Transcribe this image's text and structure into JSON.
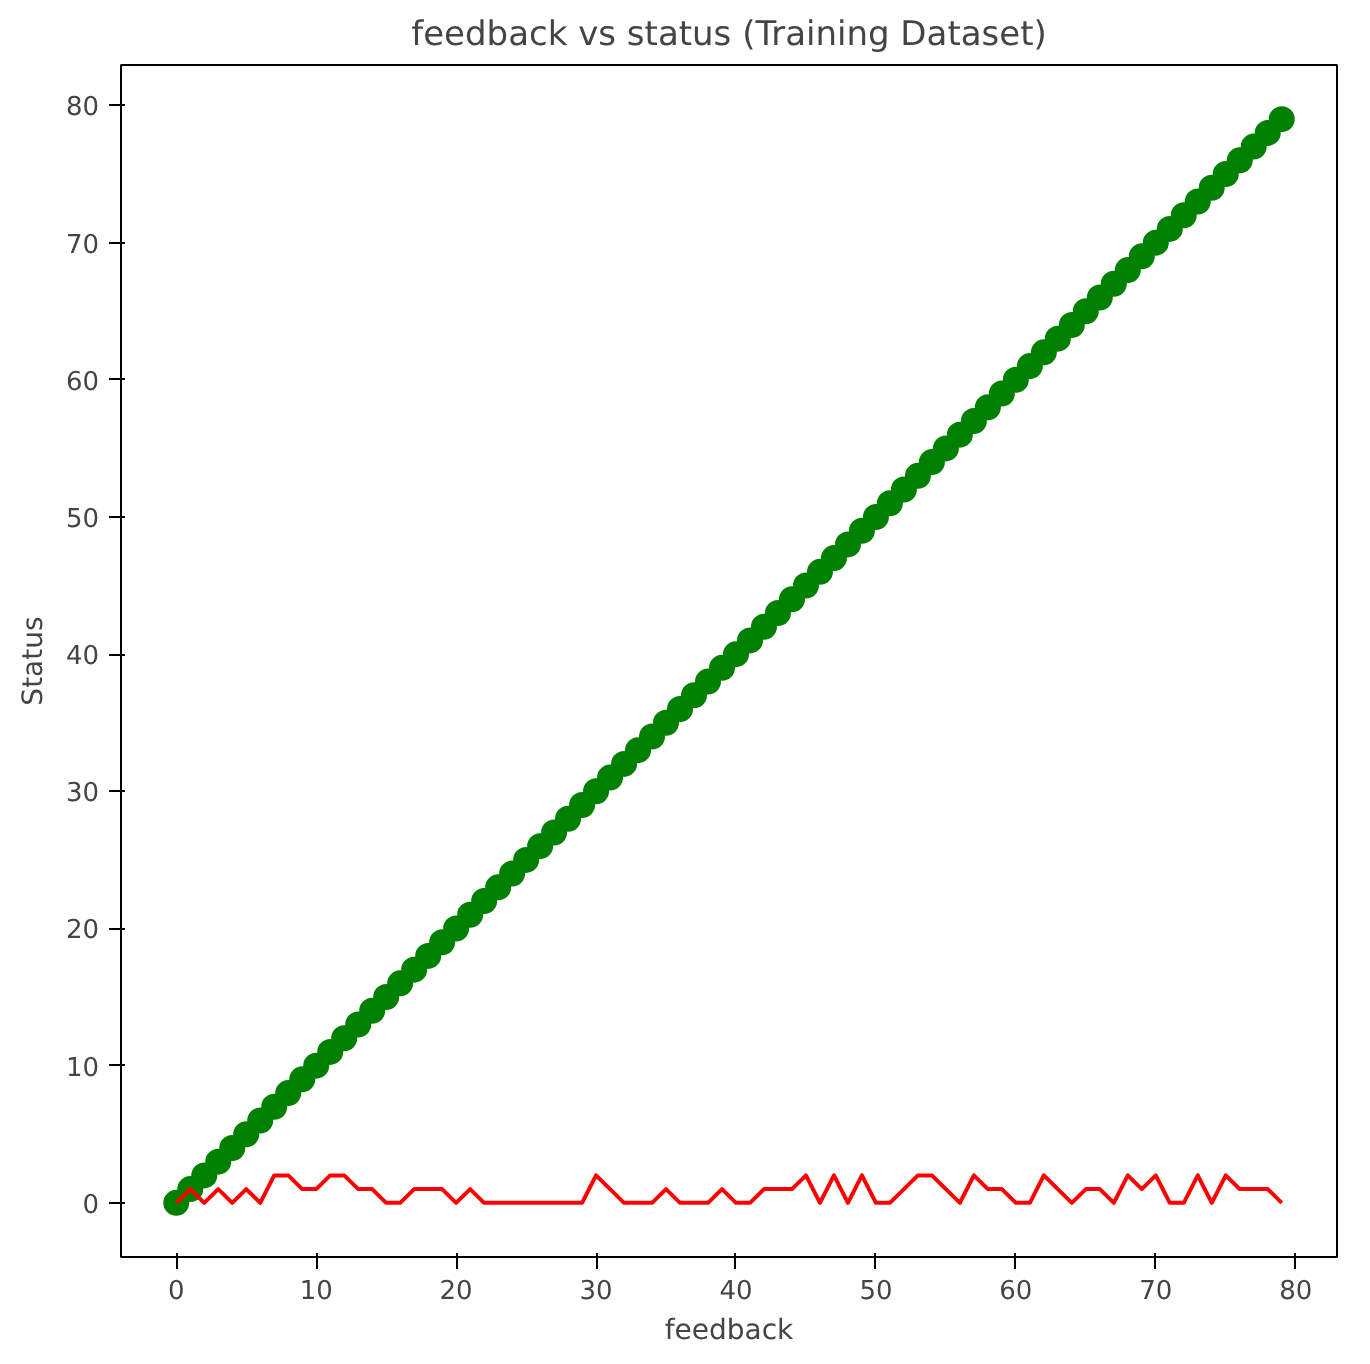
{
  "chart_data": {
    "type": "scatter",
    "title": "feedback vs status (Training Dataset)",
    "xlabel": "feedback",
    "ylabel": "Status",
    "x": [
      0,
      1,
      2,
      3,
      4,
      5,
      6,
      7,
      8,
      9,
      10,
      11,
      12,
      13,
      14,
      15,
      16,
      17,
      18,
      19,
      20,
      21,
      22,
      23,
      24,
      25,
      26,
      27,
      28,
      29,
      30,
      31,
      32,
      33,
      34,
      35,
      36,
      37,
      38,
      39,
      40,
      41,
      42,
      43,
      44,
      45,
      46,
      47,
      48,
      49,
      50,
      51,
      52,
      53,
      54,
      55,
      56,
      57,
      58,
      59,
      60,
      61,
      62,
      63,
      64,
      65,
      66,
      67,
      68,
      69,
      70,
      71,
      72,
      73,
      74,
      75,
      76,
      77,
      78,
      79
    ],
    "series": [
      {
        "color": "#008000",
        "marker": "circle",
        "values": [
          0,
          1,
          2,
          3,
          4,
          5,
          6,
          7,
          8,
          9,
          10,
          11,
          12,
          13,
          14,
          15,
          16,
          17,
          18,
          19,
          20,
          21,
          22,
          23,
          24,
          25,
          26,
          27,
          28,
          29,
          30,
          31,
          32,
          33,
          34,
          35,
          36,
          37,
          38,
          39,
          40,
          41,
          42,
          43,
          44,
          45,
          46,
          47,
          48,
          49,
          50,
          51,
          52,
          53,
          54,
          55,
          56,
          57,
          58,
          59,
          60,
          61,
          62,
          63,
          64,
          65,
          66,
          67,
          68,
          69,
          70,
          71,
          72,
          73,
          74,
          75,
          76,
          77,
          78,
          79
        ]
      },
      {
        "type": "line",
        "color": "#ff0000",
        "line_style": "solid",
        "values": [
          0,
          1,
          0,
          1,
          0,
          1,
          0,
          2,
          2,
          1,
          1,
          2,
          2,
          1,
          1,
          0,
          0,
          1,
          1,
          1,
          0,
          1,
          0,
          0,
          0,
          0,
          0,
          0,
          0,
          0,
          2,
          1,
          0,
          0,
          0,
          1,
          0,
          0,
          0,
          1,
          0,
          0,
          1,
          1,
          1,
          2,
          0,
          2,
          0,
          2,
          0,
          0,
          1,
          2,
          2,
          1,
          0,
          2,
          1,
          1,
          0,
          0,
          2,
          1,
          0,
          1,
          1,
          0,
          2,
          1,
          2,
          0,
          0,
          2,
          0,
          2,
          1,
          1,
          1,
          0
        ]
      }
    ],
    "xlim": [
      -3.95,
      82.95
    ],
    "ylim": [
      -3.95,
      82.95
    ],
    "xticks": [
      0,
      10,
      20,
      30,
      40,
      50,
      60,
      70,
      80
    ],
    "yticks": [
      0,
      10,
      20,
      30,
      40,
      50,
      60,
      70,
      80
    ],
    "grid": false
  }
}
